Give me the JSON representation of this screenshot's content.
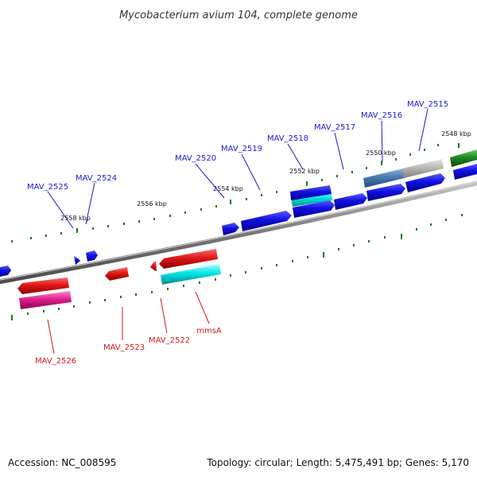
{
  "title": "Mycobacterium avium 104, complete genome",
  "accession": "Accession: NC_008595",
  "summary": "Topology: circular; Length: 5,475,491 bp; Genes: 5,170",
  "ticks": [
    "2548 kbp",
    "2550 kbp",
    "2552 kbp",
    "2554 kbp",
    "2556 kbp",
    "2558 kbp"
  ],
  "genes_top": [
    "MAV_2515",
    "MAV_2516",
    "MAV_2517",
    "MAV_2518",
    "MAV_2519",
    "MAV_2520",
    "MAV_2524",
    "MAV_2525"
  ],
  "genes_bottom": [
    "mmsA",
    "MAV_2522",
    "MAV_2523",
    "MAV_2526"
  ],
  "colors": {
    "forward_cds": "#1010e0",
    "reverse_cds": "#e01818",
    "rna_cyan": "#00e5e5",
    "magenta": "#e0208c",
    "steel": "#4a7ab0",
    "gray": "#b0b0b0",
    "green": "#208a20",
    "tick": "#1a7a1a",
    "backbone": "#7a7a7a"
  }
}
